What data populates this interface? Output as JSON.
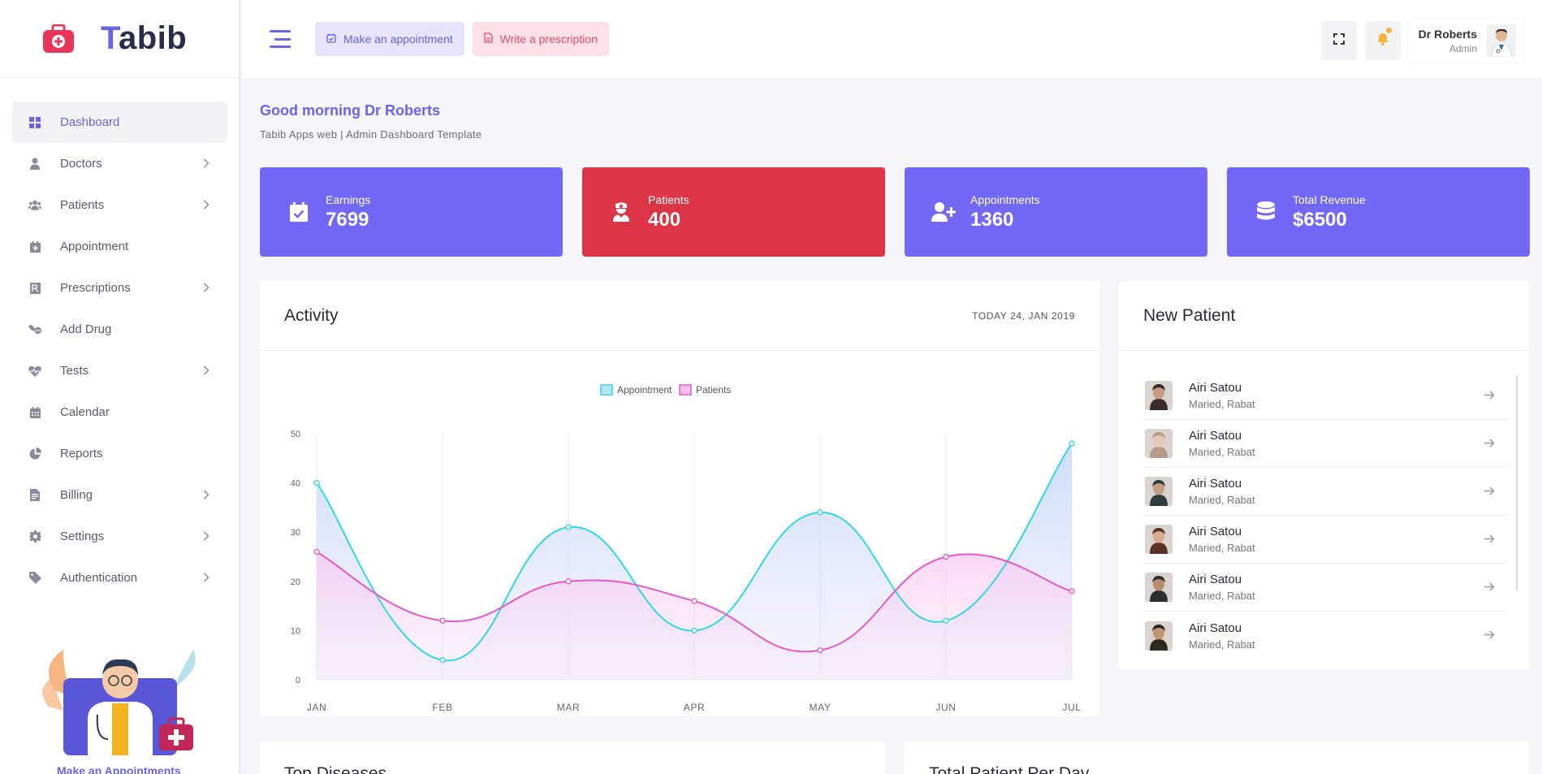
{
  "brand": {
    "name_first": "T",
    "name_rest": "abib"
  },
  "sidebar": {
    "items": [
      {
        "label": "Dashboard",
        "icon": "grid-icon",
        "active": true,
        "has_sub": false
      },
      {
        "label": "Doctors",
        "icon": "user-doctor-icon",
        "has_sub": true
      },
      {
        "label": "Patients",
        "icon": "users-icon",
        "has_sub": true
      },
      {
        "label": "Appointment",
        "icon": "calendar-plus-icon",
        "has_sub": false
      },
      {
        "label": "Prescriptions",
        "icon": "prescription-icon",
        "has_sub": true
      },
      {
        "label": "Add Drug",
        "icon": "pills-icon",
        "has_sub": false
      },
      {
        "label": "Tests",
        "icon": "heartbeat-icon",
        "has_sub": true
      },
      {
        "label": "Calendar",
        "icon": "calendar-icon",
        "has_sub": false
      },
      {
        "label": "Reports",
        "icon": "pie-chart-icon",
        "has_sub": false
      },
      {
        "label": "Billing",
        "icon": "file-invoice-icon",
        "has_sub": true
      },
      {
        "label": "Settings",
        "icon": "gear-icon",
        "has_sub": true
      },
      {
        "label": "Authentication",
        "icon": "tag-icon",
        "has_sub": true
      }
    ],
    "cta": "Make an Appointments"
  },
  "header": {
    "appointment_btn": "Make an appointment",
    "prescription_btn": "Write a prescription",
    "user_name": "Dr Roberts",
    "user_role": "Admin"
  },
  "greeting": {
    "title": "Good morning Dr Roberts",
    "subtitle": "Tabib Apps web | Admin Dashboard Template"
  },
  "stats": [
    {
      "label": "Earnings",
      "value": "7699",
      "color": "#7367f7",
      "icon": "calendar-check-icon"
    },
    {
      "label": "Patients",
      "value": "400",
      "color": "#dc3545",
      "icon": "user-nurse-icon"
    },
    {
      "label": "Appointments",
      "value": "1360",
      "color": "#7367f7",
      "icon": "user-plus-icon"
    },
    {
      "label": "Total Revenue",
      "value": "$6500",
      "color": "#7367f7",
      "icon": "database-icon"
    }
  ],
  "activity": {
    "title": "Activity",
    "date": "TODAY 24, JAN 2019"
  },
  "chart_data": {
    "type": "area",
    "categories": [
      "JAN",
      "FEB",
      "MAR",
      "APR",
      "MAY",
      "JUN",
      "JUL"
    ],
    "series": [
      {
        "name": "Appointment",
        "values": [
          40,
          4,
          31,
          10,
          34,
          12,
          48
        ],
        "color": "#2ed8e6"
      },
      {
        "name": "Patients",
        "values": [
          26,
          12,
          20,
          16,
          6,
          25,
          18
        ],
        "color": "#e45bc8"
      }
    ],
    "ylim": [
      0,
      50
    ],
    "yticks": [
      "0",
      "10",
      "20",
      "30",
      "40",
      "50"
    ],
    "legend": "top-center",
    "grid": true
  },
  "new_patient": {
    "title": "New Patient",
    "patients": [
      {
        "name": "Airi Satou",
        "sub": "Maried, Rabat"
      },
      {
        "name": "Airi Satou",
        "sub": "Maried, Rabat"
      },
      {
        "name": "Airi Satou",
        "sub": "Maried, Rabat"
      },
      {
        "name": "Airi Satou",
        "sub": "Maried, Rabat"
      },
      {
        "name": "Airi Satou",
        "sub": "Maried, Rabat"
      },
      {
        "name": "Airi Satou",
        "sub": "Maried, Rabat"
      }
    ]
  },
  "bottom_cards": {
    "left_title": "Top Diseases",
    "right_title": "Total Patient Per Day"
  }
}
